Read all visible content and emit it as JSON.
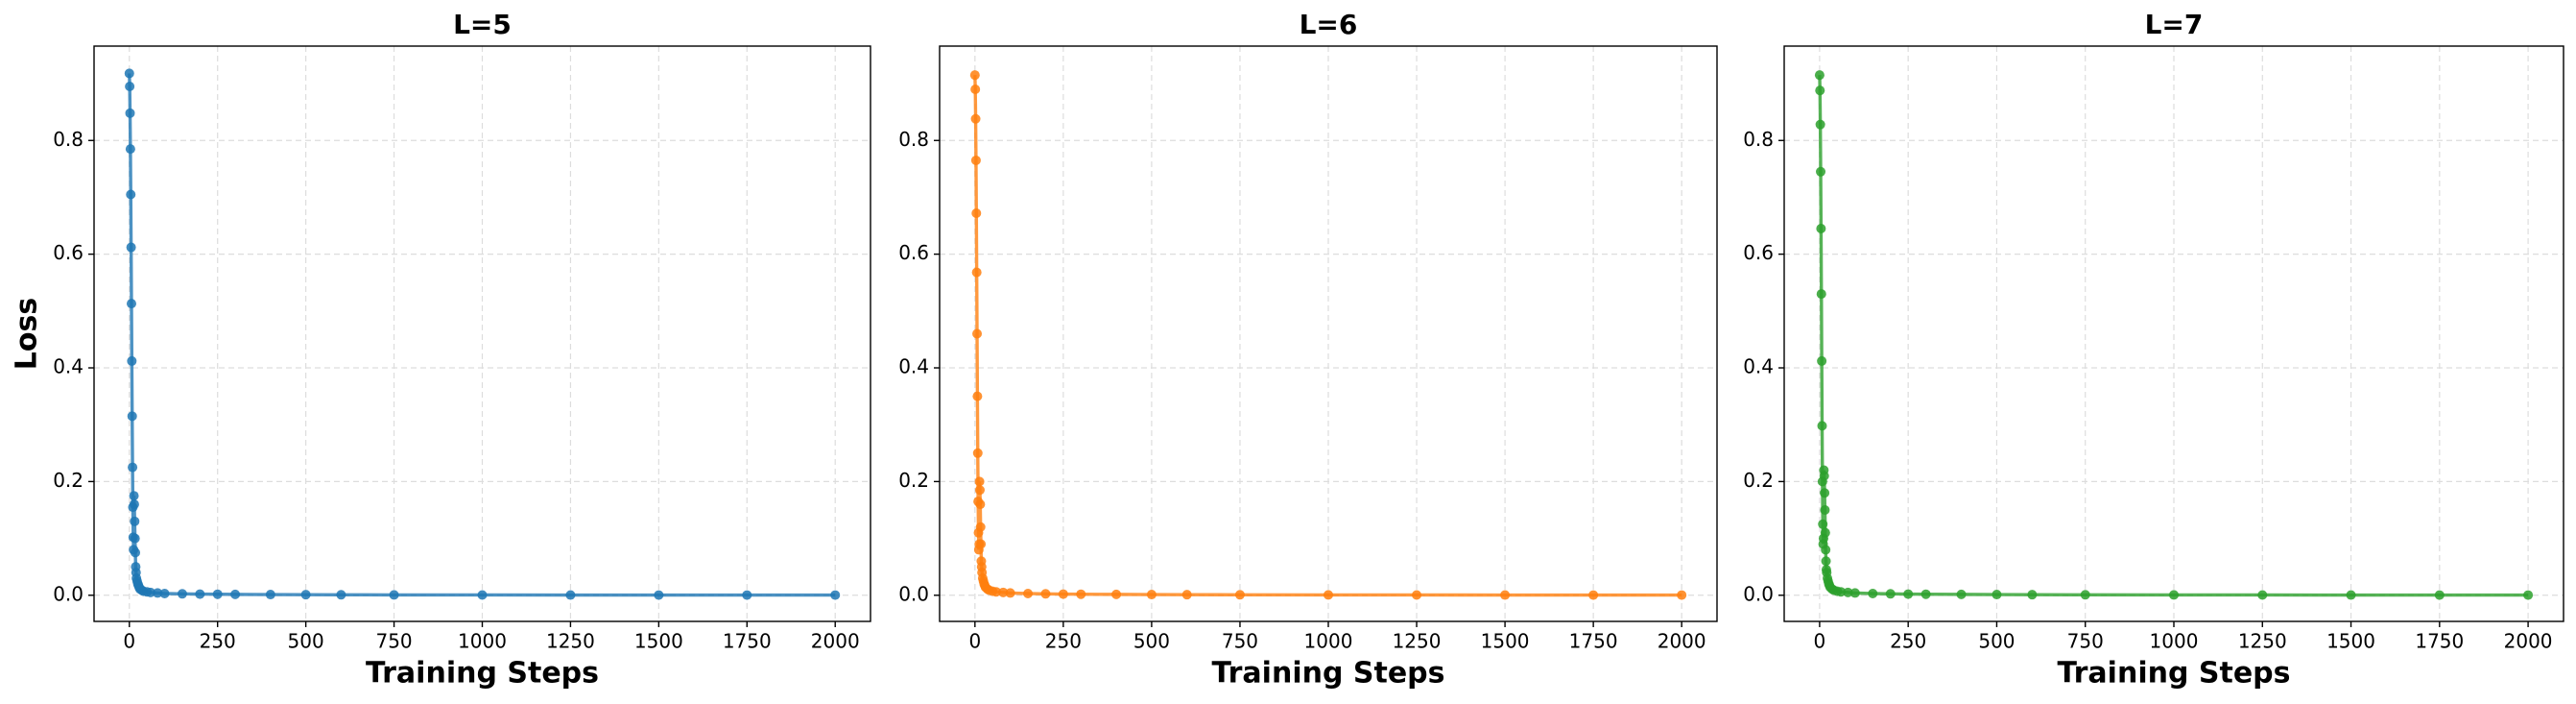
{
  "chart_data": [
    {
      "type": "line",
      "title": "L=5",
      "xlabel": "Training Steps",
      "ylabel": "Loss",
      "x": [
        0,
        1,
        2,
        3,
        4,
        5,
        6,
        7,
        8,
        9,
        10,
        11,
        12,
        13,
        14,
        15,
        16,
        17,
        18,
        19,
        20,
        22,
        24,
        26,
        28,
        30,
        35,
        40,
        50,
        60,
        80,
        100,
        150,
        200,
        250,
        300,
        400,
        500,
        600,
        750,
        1000,
        1250,
        1500,
        1750,
        2000
      ],
      "series": [
        {
          "color": "#1f77b4",
          "values": [
            0.918,
            0.895,
            0.848,
            0.785,
            0.705,
            0.612,
            0.513,
            0.412,
            0.315,
            0.225,
            0.155,
            0.102,
            0.08,
            0.175,
            0.16,
            0.13,
            0.1,
            0.075,
            0.05,
            0.04,
            0.03,
            0.025,
            0.02,
            0.017,
            0.014,
            0.011,
            0.009,
            0.007,
            0.006,
            0.005,
            0.004,
            0.003,
            0.0025,
            0.002,
            0.0018,
            0.0015,
            0.0012,
            0.001,
            0.0008,
            0.0006,
            0.0005,
            0.0004,
            0.0003,
            0.0003,
            0.0003
          ]
        }
      ],
      "xlim": [
        -100,
        2100
      ],
      "ylim": [
        -0.046,
        0.966
      ],
      "xticks": [
        0,
        250,
        500,
        750,
        1000,
        1250,
        1500,
        1750,
        2000
      ],
      "yticks": [
        {
          "value": 0,
          "label": "0.0"
        },
        0.2,
        0.4,
        0.6,
        0.8
      ],
      "grid": true
    },
    {
      "type": "line",
      "title": "L=6",
      "xlabel": "Training Steps",
      "x": [
        0,
        1,
        2,
        3,
        4,
        5,
        6,
        7,
        8,
        9,
        10,
        11,
        12,
        13,
        14,
        15,
        16,
        17,
        18,
        19,
        20,
        22,
        24,
        26,
        28,
        30,
        35,
        40,
        50,
        60,
        80,
        100,
        150,
        200,
        250,
        300,
        400,
        500,
        600,
        750,
        1000,
        1250,
        1500,
        1750,
        2000
      ],
      "series": [
        {
          "color": "#ff7f0e",
          "values": [
            0.915,
            0.89,
            0.838,
            0.765,
            0.672,
            0.568,
            0.46,
            0.35,
            0.25,
            0.165,
            0.11,
            0.08,
            0.09,
            0.2,
            0.185,
            0.16,
            0.12,
            0.09,
            0.06,
            0.05,
            0.04,
            0.03,
            0.025,
            0.02,
            0.017,
            0.014,
            0.011,
            0.009,
            0.007,
            0.006,
            0.005,
            0.004,
            0.003,
            0.0025,
            0.002,
            0.0018,
            0.0015,
            0.0012,
            0.001,
            0.0008,
            0.0006,
            0.0005,
            0.0004,
            0.0003,
            0.0003
          ]
        }
      ],
      "xlim": [
        -100,
        2100
      ],
      "ylim": [
        -0.046,
        0.966
      ],
      "xticks": [
        0,
        250,
        500,
        750,
        1000,
        1250,
        1500,
        1750,
        2000
      ],
      "yticks": [
        {
          "value": 0,
          "label": "0.0"
        },
        0.2,
        0.4,
        0.6,
        0.8
      ],
      "grid": true
    },
    {
      "type": "line",
      "title": "L=7",
      "xlabel": "Training Steps",
      "x": [
        0,
        1,
        2,
        3,
        4,
        5,
        6,
        7,
        8,
        9,
        10,
        11,
        12,
        13,
        14,
        15,
        16,
        17,
        18,
        19,
        20,
        22,
        24,
        26,
        28,
        30,
        35,
        40,
        50,
        60,
        80,
        100,
        150,
        200,
        250,
        300,
        400,
        500,
        600,
        750,
        1000,
        1250,
        1500,
        1750,
        2000
      ],
      "series": [
        {
          "color": "#2ca02c",
          "values": [
            0.915,
            0.888,
            0.828,
            0.745,
            0.645,
            0.53,
            0.412,
            0.298,
            0.2,
            0.125,
            0.09,
            0.1,
            0.22,
            0.21,
            0.18,
            0.15,
            0.11,
            0.08,
            0.06,
            0.045,
            0.04,
            0.03,
            0.025,
            0.02,
            0.017,
            0.014,
            0.011,
            0.009,
            0.007,
            0.006,
            0.005,
            0.004,
            0.003,
            0.0025,
            0.002,
            0.0018,
            0.0015,
            0.0012,
            0.001,
            0.0008,
            0.0006,
            0.0005,
            0.0004,
            0.0003,
            0.0003
          ]
        }
      ],
      "xlim": [
        -100,
        2100
      ],
      "ylim": [
        -0.046,
        0.966
      ],
      "xticks": [
        0,
        250,
        500,
        750,
        1000,
        1250,
        1500,
        1750,
        2000
      ],
      "yticks": [
        {
          "value": 0,
          "label": "0.0"
        },
        0.2,
        0.4,
        0.6,
        0.8
      ],
      "grid": true
    }
  ]
}
